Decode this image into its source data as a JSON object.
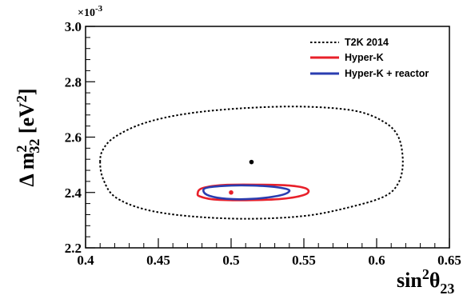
{
  "chart_data": {
    "type": "contour",
    "title": "",
    "xlabel": {
      "base": "sin",
      "sup": "2",
      "sym": "θ",
      "sub": "23"
    },
    "ylabel": {
      "prefix": "Δ m",
      "sup": "2",
      "sub": "32",
      "unit_open": " [eV",
      "unit_sup": "2",
      "unit_close": "]"
    },
    "y_exponent_label": "×10",
    "y_exponent_power": "-3",
    "xlim": [
      0.4,
      0.65
    ],
    "ylim": [
      2.2,
      3.0
    ],
    "x_ticks": [
      "0.4",
      "0.45",
      "0.5",
      "0.55",
      "0.6",
      "0.65"
    ],
    "x_tick_values": [
      0.4,
      0.45,
      0.5,
      0.55,
      0.6,
      0.65
    ],
    "y_ticks": [
      "2.2",
      "2.4",
      "2.6",
      "2.8",
      "3.0"
    ],
    "y_tick_values": [
      2.2,
      2.4,
      2.6,
      2.8,
      3.0
    ],
    "grid": false,
    "legend_position": "top-right",
    "series": [
      {
        "name": "T2K 2014",
        "color": "#000000",
        "style": "dashed",
        "best_fit": [
          0.514,
          2.51
        ],
        "contour": [
          [
            0.41,
            2.51
          ],
          [
            0.412,
            2.555
          ],
          [
            0.42,
            2.6
          ],
          [
            0.44,
            2.65
          ],
          [
            0.47,
            2.685
          ],
          [
            0.51,
            2.705
          ],
          [
            0.55,
            2.71
          ],
          [
            0.585,
            2.695
          ],
          [
            0.605,
            2.655
          ],
          [
            0.615,
            2.6
          ],
          [
            0.618,
            2.51
          ],
          [
            0.615,
            2.435
          ],
          [
            0.605,
            2.385
          ],
          [
            0.58,
            2.345
          ],
          [
            0.55,
            2.315
          ],
          [
            0.51,
            2.305
          ],
          [
            0.47,
            2.315
          ],
          [
            0.44,
            2.34
          ],
          [
            0.42,
            2.385
          ],
          [
            0.412,
            2.45
          ],
          [
            0.41,
            2.51
          ]
        ]
      },
      {
        "name": "Hyper-K",
        "color": "#e8202a",
        "style": "solid",
        "best_fit": [
          0.5,
          2.4
        ],
        "contour": [
          [
            0.477,
            2.395
          ],
          [
            0.48,
            2.415
          ],
          [
            0.495,
            2.427
          ],
          [
            0.52,
            2.428
          ],
          [
            0.54,
            2.425
          ],
          [
            0.552,
            2.413
          ],
          [
            0.551,
            2.393
          ],
          [
            0.535,
            2.377
          ],
          [
            0.51,
            2.372
          ],
          [
            0.488,
            2.375
          ],
          [
            0.479,
            2.385
          ],
          [
            0.477,
            2.395
          ]
        ]
      },
      {
        "name": "Hyper-K + reactor",
        "color": "#2a3db0",
        "style": "solid",
        "contour": [
          [
            0.481,
            2.405
          ],
          [
            0.484,
            2.418
          ],
          [
            0.5,
            2.425
          ],
          [
            0.515,
            2.425
          ],
          [
            0.53,
            2.42
          ],
          [
            0.54,
            2.408
          ],
          [
            0.534,
            2.39
          ],
          [
            0.515,
            2.377
          ],
          [
            0.497,
            2.377
          ],
          [
            0.485,
            2.388
          ],
          [
            0.481,
            2.405
          ]
        ]
      }
    ]
  },
  "legend": {
    "items": [
      {
        "label": "T2K 2014",
        "color": "#000000",
        "style": "dashed"
      },
      {
        "label": "Hyper-K",
        "color": "#e8202a",
        "style": "solid"
      },
      {
        "label": "Hyper-K + reactor",
        "color": "#2a3db0",
        "style": "solid"
      }
    ]
  }
}
